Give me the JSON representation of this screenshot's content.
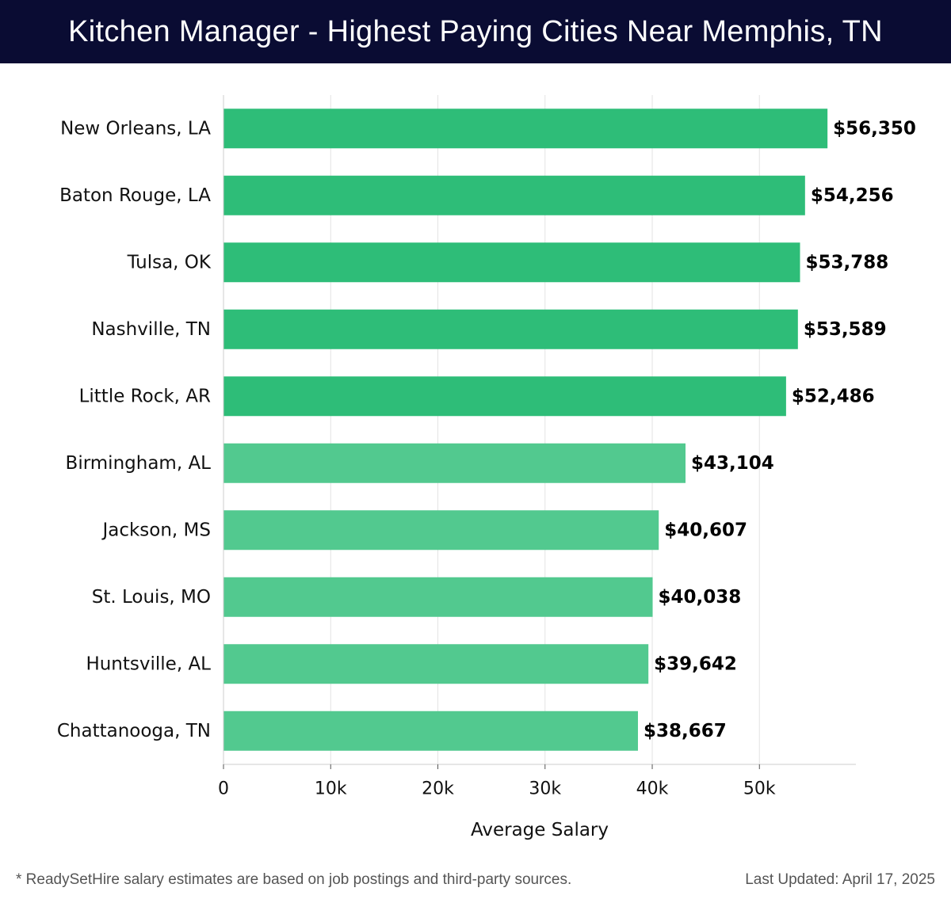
{
  "header": {
    "title": "Kitchen Manager - Highest Paying Cities Near Memphis, TN"
  },
  "chart_data": {
    "type": "bar",
    "orientation": "horizontal",
    "title": "Kitchen Manager - Highest Paying Cities Near Memphis, TN",
    "xlabel": "Average Salary",
    "ylabel": "",
    "xlim": [
      0,
      59000
    ],
    "xticks": [
      0,
      10000,
      20000,
      30000,
      40000,
      50000
    ],
    "xtick_labels": [
      "0",
      "10k",
      "20k",
      "30k",
      "40k",
      "50k"
    ],
    "grid": "vertical",
    "categories": [
      "New Orleans, LA",
      "Baton Rouge, LA",
      "Tulsa, OK",
      "Nashville, TN",
      "Little Rock, AR",
      "Birmingham, AL",
      "Jackson, MS",
      "St. Louis, MO",
      "Huntsville, AL",
      "Chattanooga, TN"
    ],
    "values": [
      56350,
      54256,
      53788,
      53589,
      52486,
      43104,
      40607,
      40038,
      39642,
      38667
    ],
    "value_labels": [
      "$56,350",
      "$54,256",
      "$53,788",
      "$53,589",
      "$52,486",
      "$43,104",
      "$40,607",
      "$40,038",
      "$39,642",
      "$38,667"
    ],
    "colors": {
      "top": "#2ebd78",
      "rest": "#52c98f"
    }
  },
  "footer": {
    "note": "* ReadySetHire salary estimates are based on job postings and third-party sources.",
    "updated": "Last Updated: April 17, 2025"
  }
}
